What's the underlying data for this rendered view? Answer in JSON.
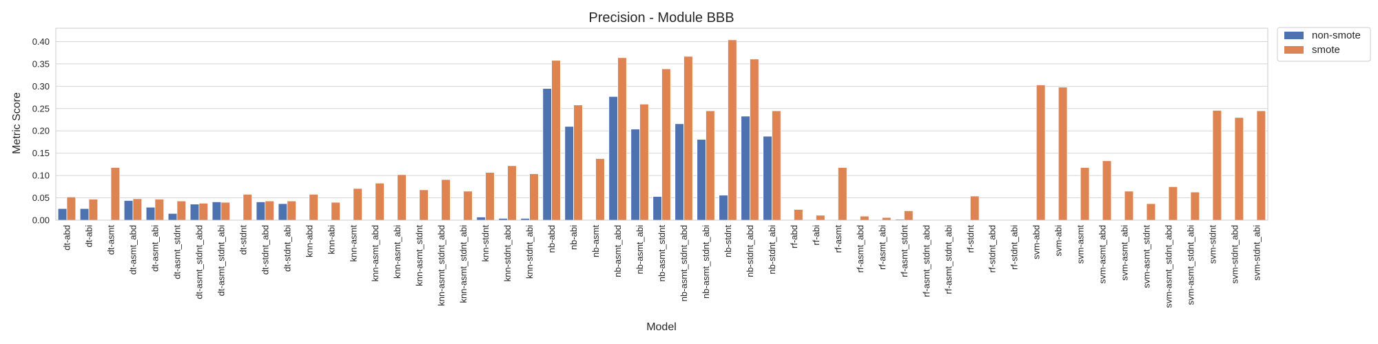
{
  "chart_data": {
    "type": "bar",
    "title": "Precision - Module BBB",
    "xlabel": "Model",
    "ylabel": "Metric Score",
    "ylim": [
      0,
      0.43
    ],
    "yticks": [
      0.0,
      0.05,
      0.1,
      0.15,
      0.2,
      0.25,
      0.3,
      0.35,
      0.4
    ],
    "grid": true,
    "legend_position": "outside-top-right",
    "categories": [
      "dt-abd",
      "dt-abi",
      "dt-asmt",
      "dt-asmt_abd",
      "dt-asmt_abi",
      "dt-asmt_stdnt",
      "dt-asmt_stdnt_abd",
      "dt-asmt_stdnt_abi",
      "dt-stdnt",
      "dt-stdnt_abd",
      "dt-stdnt_abi",
      "knn-abd",
      "knn-abi",
      "knn-asmt",
      "knn-asmt_abd",
      "knn-asmt_abi",
      "knn-asmt_stdnt",
      "knn-asmt_stdnt_abd",
      "knn-asmt_stdnt_abi",
      "knn-stdnt",
      "knn-stdnt_abd",
      "knn-stdnt_abi",
      "nb-abd",
      "nb-abi",
      "nb-asmt",
      "nb-asmt_abd",
      "nb-asmt_abi",
      "nb-asmt_stdnt",
      "nb-asmt_stdnt_abd",
      "nb-asmt_stdnt_abi",
      "nb-stdnt",
      "nb-stdnt_abd",
      "nb-stdnt_abi",
      "rf-abd",
      "rf-abi",
      "rf-asmt",
      "rf-asmt_abd",
      "rf-asmt_abi",
      "rf-asmt_stdnt",
      "rf-asmt_stdnt_abd",
      "rf-asmt_stdnt_abi",
      "rf-stdnt",
      "rf-stdnt_abd",
      "rf-stdnt_abi",
      "svm-abd",
      "svm-abi",
      "svm-asmt",
      "svm-asmt_abd",
      "svm-asmt_abi",
      "svm-asmt_stdnt",
      "svm-asmt_stdnt_abd",
      "svm-asmt_stdnt_abi",
      "svm-stdnt",
      "svm-stdnt_abd",
      "svm-stdnt_abi"
    ],
    "series": [
      {
        "name": "non-smote",
        "color": "#4c72b0",
        "values": [
          0.026,
          0.026,
          0.0,
          0.044,
          0.029,
          0.015,
          0.036,
          0.041,
          0.0,
          0.041,
          0.037,
          0.0,
          0.0,
          0.0,
          0.0,
          0.0,
          0.0,
          0.0,
          0.0,
          0.007,
          0.004,
          0.004,
          0.295,
          0.21,
          0.0,
          0.277,
          0.204,
          0.053,
          0.216,
          0.181,
          0.056,
          0.233,
          0.188,
          0.0,
          0.0,
          0.0,
          0.0,
          0.0,
          0.002,
          0.0,
          0.0,
          0.0,
          0.0,
          0.0,
          0.0,
          0.0,
          0.0,
          0.0,
          0.0,
          0.0,
          0.0,
          0.0,
          0.0,
          0.0,
          0.0
        ]
      },
      {
        "name": "smote",
        "color": "#dd8452",
        "values": [
          0.052,
          0.047,
          0.118,
          0.048,
          0.047,
          0.043,
          0.038,
          0.04,
          0.058,
          0.043,
          0.043,
          0.058,
          0.04,
          0.071,
          0.083,
          0.102,
          0.068,
          0.091,
          0.065,
          0.107,
          0.122,
          0.104,
          0.358,
          0.258,
          0.138,
          0.364,
          0.26,
          0.339,
          0.367,
          0.245,
          0.404,
          0.361,
          0.245,
          0.024,
          0.011,
          0.118,
          0.009,
          0.006,
          0.021,
          0.0,
          0.0,
          0.054,
          0.0,
          0.0,
          0.303,
          0.298,
          0.118,
          0.133,
          0.065,
          0.037,
          0.075,
          0.063,
          0.246,
          0.23,
          0.245
        ]
      }
    ]
  }
}
